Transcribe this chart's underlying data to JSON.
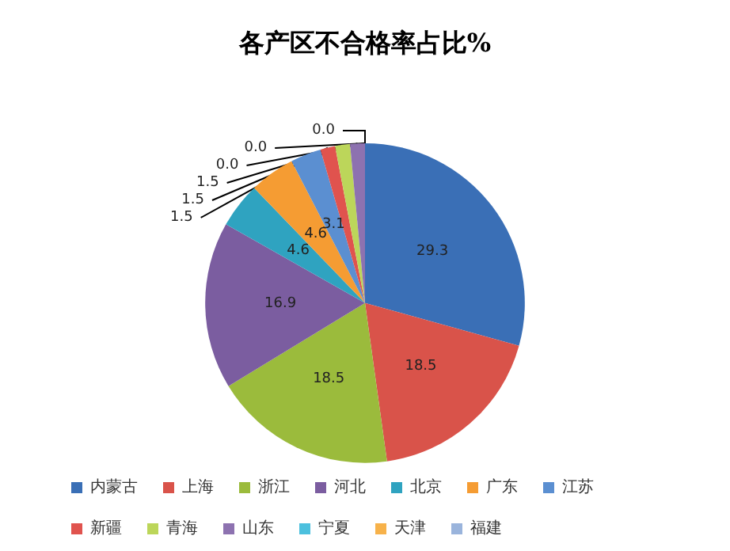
{
  "chart_data": {
    "type": "pie",
    "title": "各产区不合格率占比%",
    "categories": [
      "内蒙古",
      "上海",
      "浙江",
      "河北",
      "北京",
      "广东",
      "江苏",
      "新疆",
      "青海",
      "山东",
      "宁夏",
      "天津",
      "福建"
    ],
    "values": [
      29.3,
      18.5,
      18.5,
      16.9,
      4.6,
      4.6,
      3.1,
      1.5,
      1.5,
      1.5,
      0,
      0,
      0
    ],
    "value_labels": [
      "29.3",
      "18.5",
      "18.5",
      "16.9",
      "4.6",
      "4.6",
      "3.1",
      "1.5",
      "1.5",
      "1.5",
      "0.0",
      "0.0",
      "0.0"
    ],
    "colors": [
      "#3a6fb6",
      "#d9534a",
      "#9bbb3c",
      "#7b5da0",
      "#2fa3c0",
      "#f59c33",
      "#5b8fd1",
      "#e0534e",
      "#bcd65a",
      "#8d72b0",
      "#4cc0de",
      "#f7b24a",
      "#9ab4dc"
    ],
    "legend": "bottom"
  }
}
